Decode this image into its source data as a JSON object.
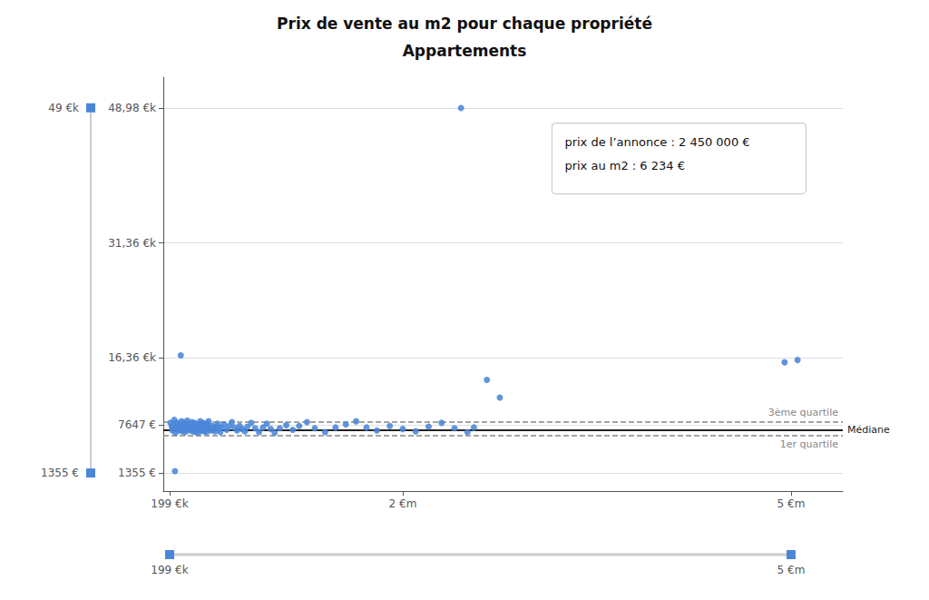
{
  "chart_data": {
    "type": "scatter",
    "title": "Prix de vente au m2 pour chaque propriété",
    "subtitle": "Appartements",
    "color": "#4a86d8",
    "x": [
      205000,
      215000,
      220000,
      225000,
      230000,
      235000,
      240000,
      245000,
      250000,
      255000,
      260000,
      265000,
      270000,
      275000,
      280000,
      285000,
      290000,
      295000,
      300000,
      305000,
      310000,
      315000,
      320000,
      325000,
      330000,
      335000,
      340000,
      345000,
      350000,
      355000,
      360000,
      365000,
      370000,
      375000,
      380000,
      385000,
      390000,
      395000,
      400000,
      405000,
      410000,
      415000,
      420000,
      425000,
      430000,
      435000,
      440000,
      445000,
      450000,
      455000,
      460000,
      465000,
      470000,
      475000,
      480000,
      485000,
      490000,
      495000,
      500000,
      510000,
      520000,
      530000,
      540000,
      550000,
      560000,
      570000,
      580000,
      590000,
      600000,
      620000,
      640000,
      660000,
      680000,
      700000,
      720000,
      740000,
      760000,
      780000,
      800000,
      830000,
      860000,
      890000,
      920000,
      950000,
      980000,
      1010000,
      1050000,
      1100000,
      1150000,
      1200000,
      1260000,
      1320000,
      1400000,
      1480000,
      1560000,
      1640000,
      1720000,
      1800000,
      1900000,
      2000000,
      2100000,
      2200000,
      2300000,
      2400000,
      2500000,
      2550000,
      240000,
      285000,
      2450000,
      2650000,
      2750000,
      4950000,
      5050000
    ],
    "values": [
      7900,
      7400,
      6900,
      7200,
      7600,
      8300,
      7100,
      6600,
      7400,
      7900,
      7000,
      7200,
      7700,
      7300,
      6900,
      7500,
      8100,
      7200,
      6800,
      7400,
      7900,
      7100,
      6700,
      7300,
      7800,
      8200,
      7400,
      7000,
      7600,
      7200,
      6900,
      7500,
      8000,
      7300,
      6800,
      7400,
      7900,
      7200,
      6700,
      7300,
      7700,
      7100,
      6600,
      7200,
      7600,
      8100,
      7300,
      6900,
      7500,
      7900,
      7200,
      6800,
      7400,
      7800,
      7100,
      6700,
      7300,
      7700,
      8100,
      7300,
      6900,
      7500,
      7100,
      6800,
      7400,
      7800,
      7200,
      6700,
      7300,
      7700,
      7000,
      7500,
      8000,
      7300,
      6900,
      7500,
      7100,
      6800,
      7400,
      7900,
      7200,
      6700,
      7300,
      7800,
      7100,
      6600,
      7200,
      7600,
      7000,
      7500,
      8000,
      7200,
      6700,
      7300,
      7700,
      8100,
      7300,
      6900,
      7500,
      7100,
      6800,
      7400,
      7900,
      7200,
      6700,
      7300,
      1600,
      16700,
      48980,
      13500,
      11200,
      15800,
      16100
    ],
    "xlim": [
      150000,
      5400000
    ],
    "xticks": [
      {
        "value": 199000,
        "label": "199 €k"
      },
      {
        "value": 2000000,
        "label": "2 €m"
      },
      {
        "value": 5000000,
        "label": "5 €m"
      }
    ],
    "ylim": [
      -1000,
      53000
    ],
    "yticks": [
      {
        "value": 1355,
        "label": "1355 €"
      },
      {
        "value": 7647,
        "label": "7647 €"
      },
      {
        "value": 16360,
        "label": "16,36 €k"
      },
      {
        "value": 31360,
        "label": "31,36 €k"
      },
      {
        "value": 48980,
        "label": "48,98 €k"
      }
    ],
    "grid": true,
    "hlines": [
      {
        "value": 8000,
        "label": "3ème quartile",
        "color": "#888888",
        "line_style": "dashed"
      },
      {
        "value": 7000,
        "label": "Médiane",
        "color": "#222222",
        "line_style": "solid"
      },
      {
        "value": 6300,
        "label": "1er quartile",
        "color": "#888888",
        "line_style": "dashed"
      }
    ],
    "annotations": [
      "prix de l’annonce : 2 450 000 €",
      "prix au m2 : 6 234 €"
    ],
    "range_indicator": {
      "values": [
        1355,
        49000
      ],
      "labels": [
        "1355 €",
        "49 €k"
      ]
    },
    "slider": {
      "values": [
        199000,
        5000000
      ],
      "labels": [
        "199 €k",
        "5 €m"
      ]
    }
  }
}
